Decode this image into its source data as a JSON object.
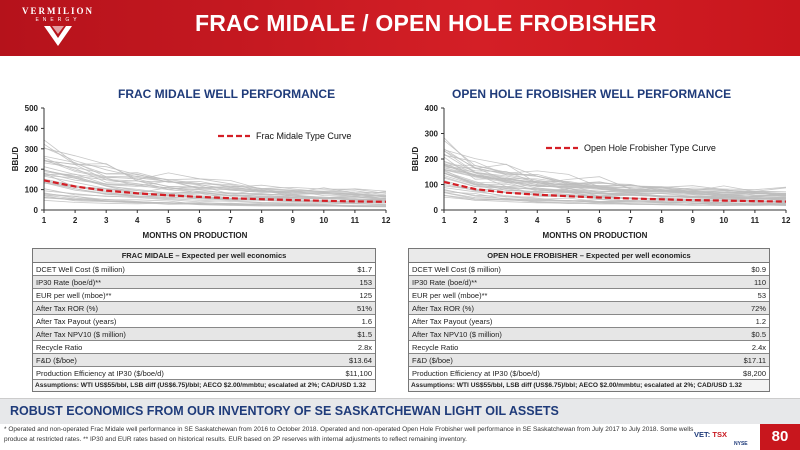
{
  "header": {
    "logo_name": "VERMILION",
    "logo_sub": "ENERGY",
    "title": "FRAC MIDALE / OPEN HOLE FROBISHER"
  },
  "chart_data": [
    {
      "type": "line",
      "title": "FRAC MIDALE WELL PERFORMANCE",
      "xlabel": "MONTHS ON PRODUCTION",
      "ylabel": "BBL/D",
      "x": [
        1,
        2,
        3,
        4,
        5,
        6,
        7,
        8,
        9,
        10,
        11,
        12
      ],
      "ylim": [
        0,
        500
      ],
      "yticks": [
        0,
        100,
        200,
        300,
        400,
        500
      ],
      "legend_position": "top-right",
      "series": [
        {
          "name": "Frac Midale Type Curve",
          "color": "#d41f26",
          "values": [
            145,
            115,
            95,
            82,
            72,
            64,
            58,
            53,
            49,
            45,
            42,
            40
          ]
        }
      ],
      "background_wells_color": "#bdbdbd"
    },
    {
      "type": "line",
      "title": "OPEN HOLE FROBISHER WELL PERFORMANCE",
      "xlabel": "MONTHS ON PRODUCTION",
      "ylabel": "BBL/D",
      "x": [
        1,
        2,
        3,
        4,
        5,
        6,
        7,
        8,
        9,
        10,
        11,
        12
      ],
      "ylim": [
        0,
        400
      ],
      "yticks": [
        0,
        100,
        200,
        300,
        400
      ],
      "legend_position": "top-right",
      "series": [
        {
          "name": "Open Hole Frobisher Type Curve",
          "color": "#d41f26",
          "values": [
            110,
            82,
            68,
            60,
            54,
            49,
            45,
            42,
            39,
            37,
            35,
            33
          ]
        }
      ],
      "background_wells_color": "#bdbdbd"
    }
  ],
  "tables": {
    "midale": {
      "title": "FRAC MIDALE – Expected per well economics",
      "rows": [
        {
          "label": "DCET Well Cost ($ million)",
          "value": "$1.7"
        },
        {
          "label": "IP30 Rate (boe/d)**",
          "value": "153"
        },
        {
          "label": "EUR per well (mboe)**",
          "value": "125"
        },
        {
          "label": "After Tax ROR (%)",
          "value": "51%"
        },
        {
          "label": "After Tax Payout (years)",
          "value": "1.6"
        },
        {
          "label": "After Tax NPV10 ($ million)",
          "value": "$1.5"
        },
        {
          "label": "Recycle Ratio",
          "value": "2.8x"
        },
        {
          "label": "F&D ($/boe)",
          "value": "$13.64"
        },
        {
          "label": "Production Efficiency at IP30 ($/boe/d)",
          "value": "$11,100"
        }
      ],
      "assumptions": "Assumptions: WTI US$55/bbl, LSB diff (US$6.75)/bbl; AECO $2.00/mmbtu; escalated at 2%; CAD/USD 1.32"
    },
    "frobisher": {
      "title": "OPEN HOLE FROBISHER – Expected per well economics",
      "rows": [
        {
          "label": "DCET Well Cost ($ million)",
          "value": "$0.9"
        },
        {
          "label": "IP30 Rate (boe/d)**",
          "value": "110"
        },
        {
          "label": "EUR per well (mboe)**",
          "value": "53"
        },
        {
          "label": "After Tax ROR (%)",
          "value": "72%"
        },
        {
          "label": "After Tax Payout (years)",
          "value": "1.2"
        },
        {
          "label": "After Tax NPV10 ($ million)",
          "value": "$0.5"
        },
        {
          "label": "Recycle Ratio",
          "value": "2.4x"
        },
        {
          "label": "F&D ($/boe)",
          "value": "$17.11"
        },
        {
          "label": "Production Efficiency at IP30 ($/boe/d)",
          "value": "$8,200"
        }
      ],
      "assumptions": "Assumptions: WTI US$55/bbl, LSB diff (US$6.75)/bbl; AECO $2.00/mmbtu; escalated at 2%; CAD/USD 1.32"
    }
  },
  "banner": "ROBUST ECONOMICS FROM OUR INVENTORY OF SE SASKATCHEWAN LIGHT OIL ASSETS",
  "footnote": "* Operated and non-operated Frac Midale well performance in SE Saskatchewan from 2016 to October 2018. Operated and non-operated Open Hole Frobisher well performance in SE Saskatchewan from July 2017 to July 2018. Some wells produce at restricted rates. ** IP30 and EUR rates based on historical results. EUR based on 2P reserves with internal adjustments to reflect remaining inventory.",
  "exchange": {
    "vet": "VET:",
    "tsx": "TSX",
    "nyse": "NYSE"
  },
  "page_number": "80",
  "colors": {
    "brand_red": "#c8161d",
    "title_blue": "#1f3b7a"
  }
}
